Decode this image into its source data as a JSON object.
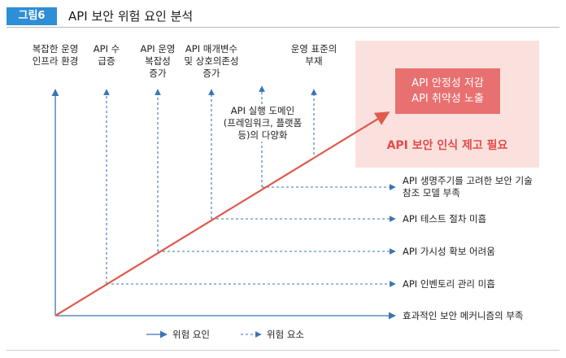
{
  "figure": {
    "badge": "그림6",
    "title": "API 보안 위험 요인 분석"
  },
  "top_factors": [
    {
      "lines": [
        "복잡한 운영",
        "인프라 환경"
      ]
    },
    {
      "lines": [
        "API 수",
        "급증"
      ]
    },
    {
      "lines": [
        "API 운영",
        "복잡성",
        "증가"
      ]
    },
    {
      "lines": [
        "API 매개변수",
        "및 상호의존성",
        "증가"
      ]
    },
    {
      "lines": [
        "운영 표준의",
        "부재"
      ]
    }
  ],
  "middle_factor": {
    "lines": [
      "API 실행 도메인",
      "(프레임워크, 플랫폼",
      "등)의 다양화"
    ]
  },
  "right_elements": [
    {
      "lines": [
        "API 생명주기를 고려한 보안 기술",
        "참조 모델 부족"
      ]
    },
    {
      "lines": [
        "API 테스트 절차 미흡"
      ]
    },
    {
      "lines": [
        "API 가시성 확보 어려움"
      ]
    },
    {
      "lines": [
        "API 인벤토리 관리 미흡"
      ]
    },
    {
      "lines": [
        "효과적인 보안 메커니즘의 부족"
      ]
    }
  ],
  "outcome": {
    "lines": [
      "API 안정성 저감",
      "API 취약성 노출"
    ],
    "label": "API 보안 인식 제고 필요"
  },
  "legend": {
    "risk_factor": "위험 요인",
    "risk_element": "위험 요소"
  },
  "colors": {
    "badge": "#2e8fd6",
    "arrow_blue": "#3a74b5",
    "arrow_red": "#e05a4e",
    "pink_bg": "#fbe1dd",
    "red_box": "#e97070",
    "red_text": "#e24b4b"
  }
}
